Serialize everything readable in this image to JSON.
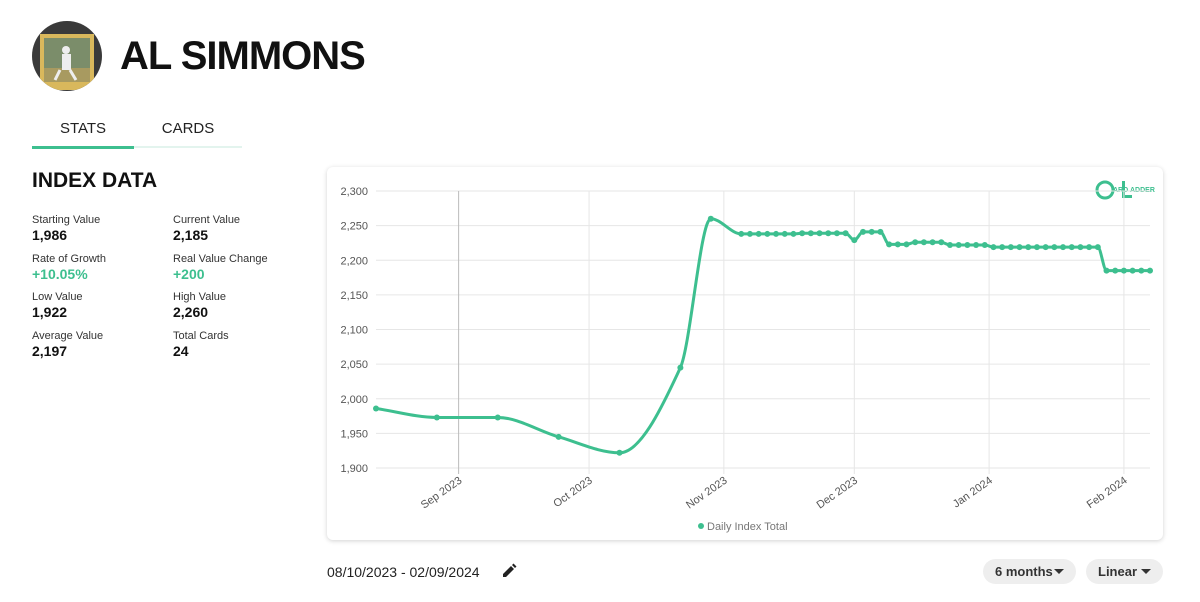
{
  "header": {
    "title": "AL SIMMONS"
  },
  "tabs": [
    "STATS",
    "CARDS"
  ],
  "index_data": {
    "title": "INDEX DATA",
    "stats": [
      {
        "label": "Starting Value",
        "value": "1,986"
      },
      {
        "label": "Current Value",
        "value": "2,185"
      },
      {
        "label": "Rate of Growth",
        "value": "+10.05%"
      },
      {
        "label": "Real Value Change",
        "value": "+200"
      },
      {
        "label": "Low Value",
        "value": "1,922"
      },
      {
        "label": "High Value",
        "value": "2,260"
      },
      {
        "label": "Average Value",
        "value": "2,197"
      },
      {
        "label": "Total Cards",
        "value": "24"
      }
    ]
  },
  "chart_data": {
    "type": "line",
    "x": [
      "2023-08-13",
      "2023-08-27",
      "2023-09-10",
      "2023-09-24",
      "2023-10-08",
      "2023-10-22",
      "2023-10-29",
      "2023-11-05",
      "2023-11-07",
      "2023-11-09",
      "2023-11-11",
      "2023-11-13",
      "2023-11-15",
      "2023-11-17",
      "2023-11-19",
      "2023-11-21",
      "2023-11-23",
      "2023-11-25",
      "2023-11-27",
      "2023-11-29",
      "2023-12-01",
      "2023-12-03",
      "2023-12-05",
      "2023-12-07",
      "2023-12-09",
      "2023-12-11",
      "2023-12-13",
      "2023-12-15",
      "2023-12-17",
      "2023-12-19",
      "2023-12-21",
      "2023-12-23",
      "2023-12-25",
      "2023-12-27",
      "2023-12-29",
      "2023-12-31",
      "2024-01-02",
      "2024-01-04",
      "2024-01-06",
      "2024-01-08",
      "2024-01-10",
      "2024-01-12",
      "2024-01-14",
      "2024-01-16",
      "2024-01-18",
      "2024-01-20",
      "2024-01-22",
      "2024-01-24",
      "2024-01-26",
      "2024-01-28",
      "2024-01-30",
      "2024-02-01",
      "2024-02-03",
      "2024-02-05",
      "2024-02-07"
    ],
    "series": [
      {
        "name": "Daily Index Total",
        "color": "#3dbf8f",
        "values": [
          1986,
          1973,
          1973,
          1945,
          1922,
          2045,
          2260,
          2238,
          2238,
          2238,
          2238,
          2238,
          2238,
          2238,
          2239,
          2239,
          2239,
          2239,
          2239,
          2239,
          2229,
          2241,
          2241,
          2241,
          2223,
          2223,
          2223,
          2226,
          2226,
          2226,
          2226,
          2222,
          2222,
          2222,
          2222,
          2222,
          2219,
          2219,
          2219,
          2219,
          2219,
          2219,
          2219,
          2219,
          2219,
          2219,
          2219,
          2219,
          2219,
          2185,
          2185,
          2185,
          2185,
          2185,
          2185
        ]
      }
    ],
    "xlim": [
      "2023-08-13",
      "2024-02-07"
    ],
    "xticks": [
      {
        "value": "2023-09-01",
        "label": "Sep 2023"
      },
      {
        "value": "2023-10-01",
        "label": "Oct 2023"
      },
      {
        "value": "2023-11-01",
        "label": "Nov 2023"
      },
      {
        "value": "2023-12-01",
        "label": "Dec 2023"
      },
      {
        "value": "2024-01-01",
        "label": "Jan 2024"
      },
      {
        "value": "2024-02-01",
        "label": "Feb 2024"
      }
    ],
    "ylim": [
      1900,
      2300
    ],
    "yticks": [
      {
        "value": 1900,
        "label": "1,900"
      },
      {
        "value": 1950,
        "label": "1,950"
      },
      {
        "value": 2000,
        "label": "2,000"
      },
      {
        "value": 2050,
        "label": "2,050"
      },
      {
        "value": 2100,
        "label": "2,100"
      },
      {
        "value": 2150,
        "label": "2,150"
      },
      {
        "value": 2200,
        "label": "2,200"
      },
      {
        "value": 2250,
        "label": "2,250"
      },
      {
        "value": 2300,
        "label": "2,300"
      }
    ],
    "grid": true,
    "legend": "bottom"
  },
  "controls": {
    "date_range": "08/10/2023 - 02/09/2024",
    "period": "6 months",
    "scale": "Linear"
  }
}
